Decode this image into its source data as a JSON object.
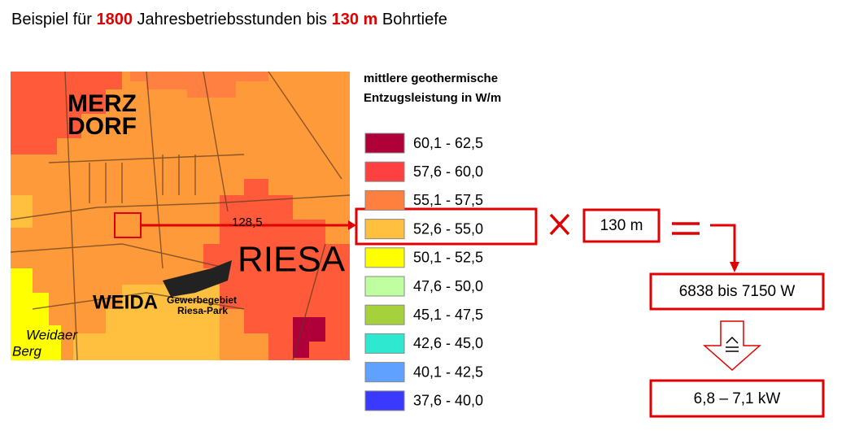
{
  "header": {
    "title": [
      {
        "text": "Beispiel für ",
        "accent": false
      },
      {
        "text": "1800",
        "accent": true
      },
      {
        "text": " Jahresbetriebsstunden bis ",
        "accent": false
      },
      {
        "text": "130 m",
        "accent": true
      },
      {
        "text": " Bohrtiefe",
        "accent": false
      }
    ]
  },
  "map": {
    "labels": [
      "MERZ",
      "DORF",
      "RIESA",
      "WEIDA",
      "Gewerbegebiet",
      "Riesa-Park",
      "Weidaer",
      "Berg",
      "128,5"
    ]
  },
  "legend": {
    "title": [
      "mittlere geothermische",
      "Entzugsleistung in W/m"
    ],
    "items": [
      {
        "label": "60,1 - 62,5",
        "color": "#b0003a"
      },
      {
        "label": "57,6 - 60,0",
        "color": "#ff4040"
      },
      {
        "label": "55,1 - 57,5",
        "color": "#ff7f3f"
      },
      {
        "label": "52,6 - 55,0",
        "color": "#ffbf3f"
      },
      {
        "label": "50,1 - 52,5",
        "color": "#ffff00"
      },
      {
        "label": "47,6 - 50,0",
        "color": "#bfffa0"
      },
      {
        "label": "45,1 - 47,5",
        "color": "#a5d23c"
      },
      {
        "label": "42,6 - 45,0",
        "color": "#2ee8d0"
      },
      {
        "label": "40,1 - 42,5",
        "color": "#60a0ff"
      },
      {
        "label": "37,6 - 40,0",
        "color": "#3a3aff"
      }
    ]
  },
  "calculation": {
    "depth": "130 m",
    "result_w": "6838 bis 7150 W",
    "result_kw": "6,8 – 7,1 kW"
  }
}
